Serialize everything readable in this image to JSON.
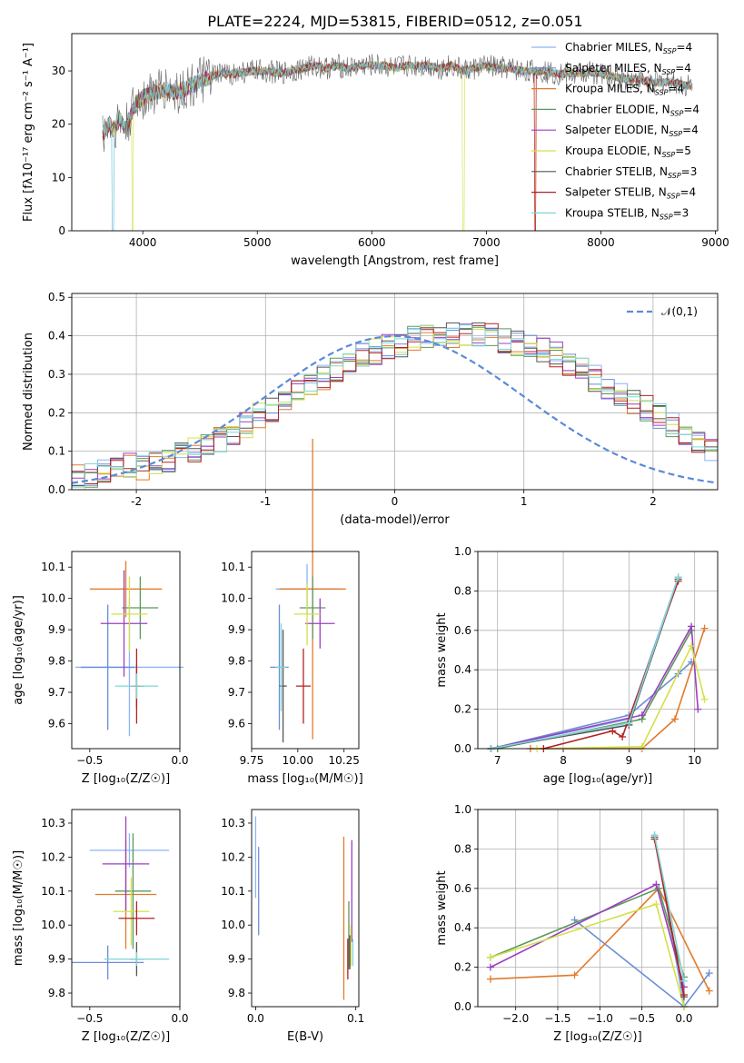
{
  "figure_title": "PLATE=2224, MJD=53815, FIBERID=0512, z=0.051",
  "palette": [
    "#8ab4f8",
    "#6b8fd6",
    "#e07b2c",
    "#5a9a5a",
    "#9b3fbf",
    "#d4e04a",
    "#555555",
    "#b22222",
    "#7fd6d6"
  ],
  "chart_data": [
    {
      "type": "line",
      "id": "spectrum",
      "title": "PLATE=2224, MJD=53815, FIBERID=0512, z=0.051",
      "xlabel": "wavelength [Angstrom, rest frame]",
      "ylabel": "Flux [fλ10⁻¹⁷ erg cm⁻² s⁻¹ A⁻¹]",
      "xlim": [
        3380,
        9020
      ],
      "ylim": [
        0,
        37
      ],
      "xticks": [
        4000,
        5000,
        6000,
        7000,
        8000,
        9000
      ],
      "yticks": [
        0,
        10,
        20,
        30
      ],
      "grid": false,
      "legend_position": "right",
      "data_wavelength": [
        3650,
        3700,
        3750,
        3800,
        3850,
        3900,
        3950,
        4000,
        4100,
        4200,
        4300,
        4400,
        4500,
        4600,
        4700,
        4800,
        4900,
        5000,
        5100,
        5200,
        5300,
        5400,
        5500,
        5600,
        5700,
        5800,
        5900,
        6000,
        6100,
        6200,
        6300,
        6400,
        6500,
        6600,
        6700,
        6800,
        6900,
        7000,
        7100,
        7200,
        7300,
        7400,
        7500,
        7600,
        7700,
        7800,
        7900,
        8000,
        8100,
        8200,
        8300,
        8400,
        8500,
        8600,
        8700,
        8800
      ],
      "data_flux": [
        18,
        20,
        19,
        21,
        19,
        22,
        24,
        25,
        26,
        26.5,
        26,
        27,
        28,
        29,
        29.5,
        29.5,
        29.8,
        30,
        30,
        29.5,
        30,
        30.5,
        31,
        30.5,
        31,
        30.5,
        31,
        31,
        31,
        30.5,
        31,
        31,
        31,
        30.5,
        31,
        30,
        30.5,
        31,
        30.5,
        30.5,
        30,
        30,
        30,
        29.5,
        29.5,
        29.5,
        29.8,
        29.5,
        29,
        28.5,
        28.5,
        28,
        27.8,
        28,
        27.5,
        27
      ],
      "model_drops": [
        3740,
        3910,
        6800,
        7420
      ],
      "series": [
        {
          "name": "Chabrier MILES, N",
          "sub": "SSP",
          "suffix": "=4"
        },
        {
          "name": "Salpeter MILES, N",
          "sub": "SSP",
          "suffix": "=4"
        },
        {
          "name": "Kroupa MILES, N",
          "sub": "SSP",
          "suffix": "=4"
        },
        {
          "name": "Chabrier ELODIE, N",
          "sub": "SSP",
          "suffix": "=4"
        },
        {
          "name": "Salpeter ELODIE, N",
          "sub": "SSP",
          "suffix": "=4"
        },
        {
          "name": "Kroupa ELODIE, N",
          "sub": "SSP",
          "suffix": "=5"
        },
        {
          "name": "Chabrier STELIB, N",
          "sub": "SSP",
          "suffix": "=3"
        },
        {
          "name": "Salpeter STELIB, N",
          "sub": "SSP",
          "suffix": "=4"
        },
        {
          "name": "Kroupa STELIB, N",
          "sub": "SSP",
          "suffix": "=3"
        }
      ]
    },
    {
      "type": "histogram",
      "id": "residuals",
      "xlabel": "(data-model)/error",
      "ylabel": "Normed distribution",
      "xlim": [
        -2.5,
        2.5
      ],
      "ylim": [
        0,
        0.51
      ],
      "xticks": [
        -2,
        -1,
        0,
        1,
        2
      ],
      "yticks": [
        0.0,
        0.1,
        0.2,
        0.3,
        0.4,
        0.5
      ],
      "grid": true,
      "legend_position": "top-right",
      "legend_label": "𝒩(0,1)",
      "bin_width": 0.1,
      "base_density_bins": [
        0.03,
        0.04,
        0.05,
        0.05,
        0.06,
        0.06,
        0.07,
        0.08,
        0.09,
        0.1,
        0.11,
        0.13,
        0.15,
        0.17,
        0.19,
        0.21,
        0.23,
        0.25,
        0.27,
        0.29,
        0.31,
        0.33,
        0.35,
        0.36,
        0.37,
        0.38,
        0.39,
        0.4,
        0.4,
        0.4,
        0.4,
        0.4,
        0.4,
        0.39,
        0.38,
        0.37,
        0.36,
        0.35,
        0.33,
        0.31,
        0.29,
        0.27,
        0.25,
        0.23,
        0.21,
        0.19,
        0.17,
        0.15,
        0.13,
        0.11
      ],
      "histogram_count": 9
    },
    {
      "type": "errorbar",
      "id": "age_vs_Z",
      "xlabel": "Z [log₁₀(Z/Z☉)]",
      "ylabel": "age  [log₁₀(age/yr)]",
      "xlim": [
        -0.6,
        0.0
      ],
      "ylim": [
        9.52,
        10.15
      ],
      "xticks": [
        -0.5,
        0.0
      ],
      "xticklabels": [
        "−0.5",
        "0.0"
      ],
      "yticks": [
        9.6,
        9.7,
        9.8,
        9.9,
        10.0,
        10.1
      ],
      "points": [
        {
          "x": -0.28,
          "y": 9.78,
          "xerr": 0.3,
          "yerr": 0.22
        },
        {
          "x": -0.4,
          "y": 9.78,
          "xerr": 0.15,
          "yerr": 0.2
        },
        {
          "x": -0.3,
          "y": 10.03,
          "xerr": 0.2,
          "yerr": 0.09
        },
        {
          "x": -0.22,
          "y": 9.97,
          "xerr": 0.1,
          "yerr": 0.1
        },
        {
          "x": -0.31,
          "y": 9.92,
          "xerr": 0.13,
          "yerr": 0.17
        },
        {
          "x": -0.28,
          "y": 9.95,
          "xerr": 0.1,
          "yerr": 0.12
        },
        {
          "x": -0.24,
          "y": 9.72,
          "xerr": 0.04,
          "yerr": 0.07
        },
        {
          "x": -0.24,
          "y": 9.72,
          "xerr": 0.02,
          "yerr": 0.12
        },
        {
          "x": -0.24,
          "y": 9.72,
          "xerr": 0.12,
          "yerr": 0.04
        }
      ]
    },
    {
      "type": "errorbar",
      "id": "age_vs_mass",
      "xlabel": "mass [log₁₀(M/M☉)]",
      "ylabel": "",
      "xlim": [
        9.75,
        10.33
      ],
      "ylim": [
        9.52,
        10.15
      ],
      "xticks": [
        9.75,
        10.0,
        10.25
      ],
      "xticklabels": [
        "9.75",
        "10.00",
        "10.25"
      ],
      "yticks": [
        9.6,
        9.7,
        9.8,
        9.9,
        10.0,
        10.1
      ],
      "points": [
        {
          "x": 10.05,
          "y": 10.03,
          "xerr": 0.17,
          "yerr": 0.08
        },
        {
          "x": 9.9,
          "y": 9.78,
          "xerr": 0.05,
          "yerr": 0.2
        },
        {
          "x": 10.08,
          "y": 10.03,
          "xerr": 0.18,
          "yerr": 0.48
        },
        {
          "x": 10.08,
          "y": 9.97,
          "xerr": 0.07,
          "yerr": 0.1
        },
        {
          "x": 10.12,
          "y": 9.92,
          "xerr": 0.08,
          "yerr": 0.08
        },
        {
          "x": 10.05,
          "y": 9.95,
          "xerr": 0.07,
          "yerr": 0.1
        },
        {
          "x": 9.92,
          "y": 9.72,
          "xerr": 0.02,
          "yerr": 0.18
        },
        {
          "x": 10.03,
          "y": 9.72,
          "xerr": 0.04,
          "yerr": 0.12
        },
        {
          "x": 9.91,
          "y": 9.78,
          "xerr": 0.03,
          "yerr": 0.14
        }
      ]
    },
    {
      "type": "line",
      "id": "massweight_vs_age",
      "xlabel": "age  [log₁₀(age/yr)]",
      "ylabel": "mass weight",
      "xlim": [
        6.7,
        10.35
      ],
      "ylim": [
        0,
        1.0
      ],
      "xticks": [
        7,
        8,
        9,
        10
      ],
      "yticks": [
        0.0,
        0.2,
        0.4,
        0.6,
        0.8,
        1.0
      ],
      "grid": true,
      "series": [
        {
          "x": [
            6.9,
            9.0,
            9.75
          ],
          "y": [
            0.0,
            0.15,
            0.87
          ]
        },
        {
          "x": [
            6.9,
            9.0,
            9.75,
            9.95
          ],
          "y": [
            0.0,
            0.17,
            0.38,
            0.44
          ]
        },
        {
          "x": [
            7.5,
            9.2,
            9.7,
            10.15
          ],
          "y": [
            0.0,
            0.0,
            0.15,
            0.61
          ]
        },
        {
          "x": [
            7.0,
            9.2,
            9.95
          ],
          "y": [
            0.0,
            0.15,
            0.6
          ]
        },
        {
          "x": [
            6.9,
            9.2,
            9.95,
            10.05
          ],
          "y": [
            0.0,
            0.17,
            0.62,
            0.2
          ]
        },
        {
          "x": [
            7.6,
            9.2,
            9.95,
            10.15
          ],
          "y": [
            0.0,
            0.01,
            0.52,
            0.25
          ]
        },
        {
          "x": [
            6.9,
            9.0,
            9.75
          ],
          "y": [
            0.0,
            0.12,
            0.86
          ]
        },
        {
          "x": [
            7.7,
            8.75,
            8.9,
            9.75
          ],
          "y": [
            0.0,
            0.09,
            0.06,
            0.85
          ]
        },
        {
          "x": [
            6.9,
            9.0,
            9.75
          ],
          "y": [
            0.0,
            0.13,
            0.87
          ]
        }
      ]
    },
    {
      "type": "errorbar",
      "id": "mass_vs_Z",
      "xlabel": "Z [log₁₀(Z/Z☉)]",
      "ylabel": "mass [log₁₀(M/M☉)]",
      "xlim": [
        -0.6,
        0.0
      ],
      "ylim": [
        9.76,
        10.34
      ],
      "xticks": [
        -0.5,
        0.0
      ],
      "xticklabels": [
        "−0.5",
        "0.0"
      ],
      "yticks": [
        9.8,
        9.9,
        10.0,
        10.1,
        10.2,
        10.3
      ],
      "points": [
        {
          "x": -0.28,
          "y": 10.22,
          "xerr": 0.22,
          "yerr": 0.05
        },
        {
          "x": -0.4,
          "y": 9.89,
          "xerr": 0.2,
          "yerr": 0.05
        },
        {
          "x": -0.3,
          "y": 10.09,
          "xerr": 0.17,
          "yerr": 0.16
        },
        {
          "x": -0.26,
          "y": 10.1,
          "xerr": 0.1,
          "yerr": 0.17
        },
        {
          "x": -0.3,
          "y": 10.18,
          "xerr": 0.13,
          "yerr": 0.14
        },
        {
          "x": -0.27,
          "y": 10.04,
          "xerr": 0.1,
          "yerr": 0.1
        },
        {
          "x": -0.24,
          "y": 9.9,
          "xerr": 0.04,
          "yerr": 0.05
        },
        {
          "x": -0.24,
          "y": 10.02,
          "xerr": 0.1,
          "yerr": 0.05
        },
        {
          "x": -0.24,
          "y": 9.9,
          "xerr": 0.18,
          "yerr": 0.02
        }
      ]
    },
    {
      "type": "errorbar",
      "id": "mass_vs_EBV",
      "xlabel": "E(B-V)",
      "ylabel": "",
      "xlim": [
        -0.004,
        0.103
      ],
      "ylim": [
        9.76,
        10.34
      ],
      "xticks": [
        0.0,
        0.1
      ],
      "xticklabels": [
        "0.0",
        "0.1"
      ],
      "yticks": [
        9.8,
        9.9,
        10.0,
        10.1,
        10.2,
        10.3
      ],
      "points": [
        {
          "x": 0.0,
          "y": 10.2,
          "xerr": 0.0,
          "yerr": 0.12
        },
        {
          "x": 0.003,
          "y": 10.1,
          "xerr": 0.0,
          "yerr": 0.13
        },
        {
          "x": 0.088,
          "y": 10.02,
          "xerr": 0.0,
          "yerr": 0.24
        },
        {
          "x": 0.093,
          "y": 9.97,
          "xerr": 0.0,
          "yerr": 0.1
        },
        {
          "x": 0.096,
          "y": 10.1,
          "xerr": 0.0,
          "yerr": 0.15
        },
        {
          "x": 0.095,
          "y": 9.94,
          "xerr": 0.0,
          "yerr": 0.06
        },
        {
          "x": 0.094,
          "y": 9.92,
          "xerr": 0.0,
          "yerr": 0.05
        },
        {
          "x": 0.092,
          "y": 9.9,
          "xerr": 0.0,
          "yerr": 0.06
        },
        {
          "x": 0.097,
          "y": 9.92,
          "xerr": 0.0,
          "yerr": 0.04
        }
      ]
    },
    {
      "type": "line",
      "id": "massweight_vs_Z",
      "xlabel": "Z [log₁₀(Z/Z☉)]",
      "ylabel": "mass weight",
      "xlim": [
        -2.45,
        0.4
      ],
      "ylim": [
        0,
        1.0
      ],
      "xticks": [
        -2.0,
        -1.5,
        -1.0,
        -0.5,
        0.0
      ],
      "xticklabels": [
        "−2.0",
        "−1.5",
        "−1.0",
        "−0.5",
        "0.0"
      ],
      "yticks": [
        0.0,
        0.2,
        0.4,
        0.6,
        0.8,
        1.0
      ],
      "grid": true,
      "series": [
        {
          "x": [
            -0.35,
            0.0
          ],
          "y": [
            0.87,
            0.0
          ]
        },
        {
          "x": [
            -1.3,
            0.0,
            0.3
          ],
          "y": [
            0.44,
            0.0,
            0.17
          ]
        },
        {
          "x": [
            -2.3,
            -1.3,
            -0.3,
            0.3
          ],
          "y": [
            0.14,
            0.16,
            0.6,
            0.08
          ]
        },
        {
          "x": [
            -2.3,
            -0.3,
            0.0
          ],
          "y": [
            0.25,
            0.6,
            0.15
          ]
        },
        {
          "x": [
            -2.3,
            -0.33,
            0.0
          ],
          "y": [
            0.2,
            0.62,
            0.1
          ]
        },
        {
          "x": [
            -2.3,
            -0.33,
            0.0
          ],
          "y": [
            0.25,
            0.52,
            0.0
          ]
        },
        {
          "x": [
            -0.35,
            0.0
          ],
          "y": [
            0.86,
            0.05
          ]
        },
        {
          "x": [
            -0.35,
            0.0
          ],
          "y": [
            0.85,
            0.06
          ]
        },
        {
          "x": [
            -0.35,
            0.0
          ],
          "y": [
            0.87,
            0.13
          ]
        }
      ]
    }
  ]
}
